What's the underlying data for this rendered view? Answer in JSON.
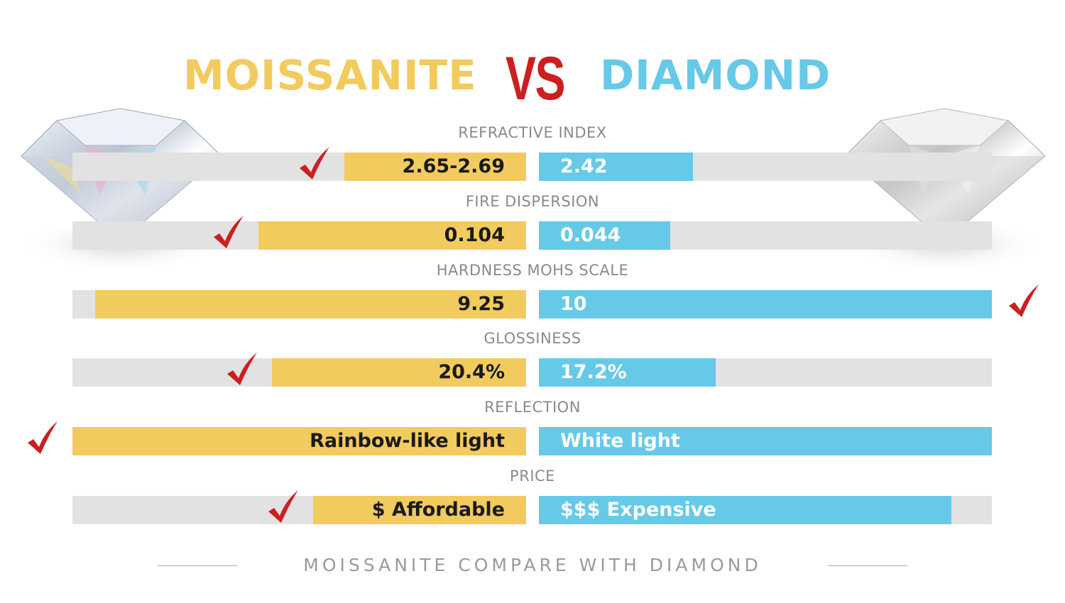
{
  "header": {
    "left_title": "MOISSANITE",
    "vs": "VS",
    "right_title": "DIAMOND"
  },
  "colors": {
    "moissanite": "#F2CB5E",
    "diamond": "#66C9E8",
    "track": "#E2E2E2",
    "check": "#CC1F1F",
    "vs": "#CC1F1F"
  },
  "chart_data": {
    "type": "bar",
    "orientation": "diverging-horizontal",
    "series": [
      {
        "name": "MOISSANITE"
      },
      {
        "name": "DIAMOND"
      }
    ],
    "rows": [
      {
        "label": "REFRACTIVE INDEX",
        "moissanite": "2.65-2.69",
        "diamond": "2.42",
        "moissanite_fill": 0.4,
        "diamond_fill": 0.34,
        "winner": "moissanite"
      },
      {
        "label": "FIRE DISPERSION",
        "moissanite": "0.104",
        "diamond": "0.044",
        "moissanite_fill": 0.59,
        "diamond_fill": 0.29,
        "winner": "moissanite"
      },
      {
        "label": "HARDNESS MOHS SCALE",
        "moissanite": "9.25",
        "diamond": "10",
        "moissanite_fill": 0.95,
        "diamond_fill": 1.0,
        "winner": "diamond"
      },
      {
        "label": "GLOSSINESS",
        "moissanite": "20.4%",
        "diamond": "17.2%",
        "moissanite_fill": 0.56,
        "diamond_fill": 0.39,
        "winner": "moissanite"
      },
      {
        "label": "REFLECTION",
        "moissanite": "Rainbow-like light",
        "diamond": "White light",
        "moissanite_fill": 1.0,
        "diamond_fill": 1.0,
        "winner": "moissanite"
      },
      {
        "label": "PRICE",
        "moissanite": "$ Affordable",
        "diamond": "$$$ Expensive",
        "moissanite_fill": 0.47,
        "diamond_fill": 0.91,
        "winner": "moissanite"
      }
    ]
  },
  "footer": {
    "caption": "MOISSANITE COMPARE WITH DIAMOND"
  },
  "icons": {
    "check": "checkmark-icon",
    "gem": "diamond-gem-image"
  }
}
